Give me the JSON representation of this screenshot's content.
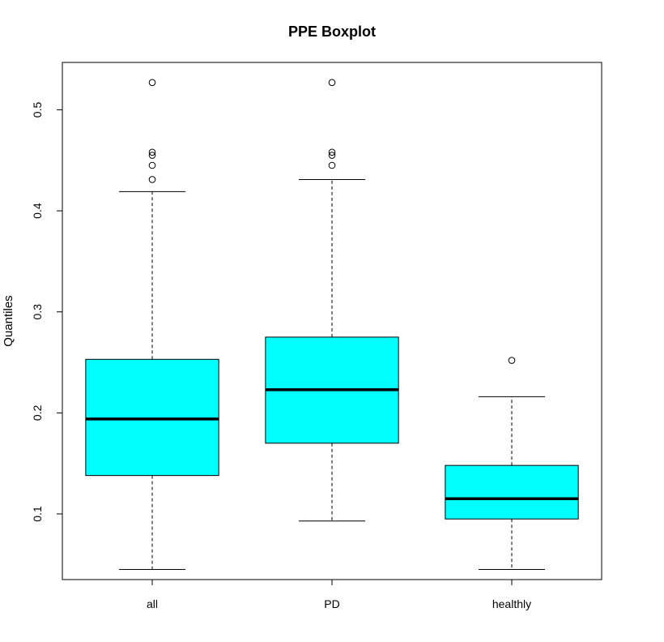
{
  "chart_data": {
    "type": "boxplot",
    "title": "PPE Boxplot",
    "xlabel": "",
    "ylabel": "Quantiles",
    "ylim": [
      0.035,
      0.5469
    ],
    "yticks": [
      0.1,
      0.2,
      0.3,
      0.4,
      0.5
    ],
    "ytick_labels": [
      "0.1",
      "0.2",
      "0.3",
      "0.4",
      "0.5"
    ],
    "categories": [
      "all",
      "PD",
      "healthly"
    ],
    "box_color": "#00ffff",
    "boxes": [
      {
        "category": "all",
        "whisker_low": 0.045,
        "q1": 0.138,
        "median": 0.194,
        "q3": 0.253,
        "whisker_high": 0.419,
        "outliers": [
          0.431,
          0.445,
          0.455,
          0.458,
          0.527
        ]
      },
      {
        "category": "PD",
        "whisker_low": 0.093,
        "q1": 0.17,
        "median": 0.223,
        "q3": 0.275,
        "whisker_high": 0.431,
        "outliers": [
          0.445,
          0.455,
          0.458,
          0.527
        ]
      },
      {
        "category": "healthly",
        "whisker_low": 0.045,
        "q1": 0.095,
        "median": 0.115,
        "q3": 0.148,
        "whisker_high": 0.216,
        "outliers": [
          0.252
        ]
      }
    ],
    "grid": false,
    "legend": "none"
  }
}
